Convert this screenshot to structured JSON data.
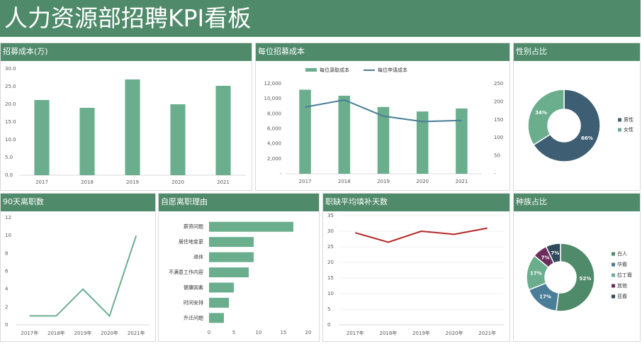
{
  "page": {
    "title": "人力资源部招聘KPI看板"
  },
  "colors": {
    "header": "#4f8a6a",
    "bar": "#6aae8e",
    "line_dark": "#4a7d97",
    "red_line": "#b52727",
    "grid": "#d9d9d9",
    "axis_text": "#595959"
  },
  "panels": {
    "cost": {
      "title": "招募成本(万)"
    },
    "per_cost": {
      "title": "每位招募成本"
    },
    "gender": {
      "title": "性别占比"
    },
    "turnover": {
      "title": "90天离职数"
    },
    "reasons": {
      "title": "自愿离职理由"
    },
    "fill_days": {
      "title": "职缺平均填补天数"
    },
    "race": {
      "title": "种族占比"
    }
  },
  "chart_data": [
    {
      "id": "cost",
      "type": "bar",
      "categories": [
        "2017",
        "2018",
        "2019",
        "2020",
        "2021"
      ],
      "values": [
        21.2,
        19.0,
        27.0,
        20.0,
        25.2
      ],
      "ylim": [
        0,
        30
      ],
      "yticks": [
        "0.0",
        "5.0",
        "10.0",
        "15.0",
        "20.0",
        "25.0",
        "30.0"
      ],
      "color": "#6aae8e"
    },
    {
      "id": "per_cost",
      "type": "bar",
      "categories": [
        "2017",
        "2018",
        "2019",
        "2020",
        "2021"
      ],
      "series": [
        {
          "name": "每位录取成本",
          "type": "bar",
          "axis": "left",
          "values": [
            11200,
            10400,
            8900,
            8300,
            8700
          ],
          "color": "#6aae8e"
        },
        {
          "name": "每位申请成本",
          "type": "line",
          "axis": "right",
          "values": [
            185,
            205,
            160,
            145,
            148
          ],
          "color": "#4a7d97"
        }
      ],
      "ylim": [
        0,
        12000
      ],
      "yticks": [
        "-",
        "2,000",
        "4,000",
        "6,000",
        "8,000",
        "10,000",
        "12,000"
      ],
      "y2lim": [
        0,
        250
      ],
      "y2ticks": [
        "-",
        "50",
        "100",
        "150",
        "200",
        "250"
      ],
      "legend": "top"
    },
    {
      "id": "gender",
      "type": "pie",
      "labels": [
        "男性",
        "女性"
      ],
      "values": [
        66,
        34
      ],
      "data_labels": [
        "66%",
        "34%"
      ],
      "colors": [
        "#3e5f73",
        "#6aae8e"
      ],
      "legend": "right"
    },
    {
      "id": "turnover",
      "type": "line",
      "categories": [
        "2017年",
        "2018年",
        "2019年",
        "2020年",
        "2021年"
      ],
      "values": [
        1,
        1,
        4,
        1,
        10
      ],
      "ylim": [
        0,
        12
      ],
      "yticks": [
        "0",
        "2",
        "4",
        "6",
        "8",
        "10",
        "12"
      ],
      "color": "#6aae8e"
    },
    {
      "id": "reasons",
      "type": "bar",
      "orientation": "horizontal",
      "categories": [
        "薪资问题",
        "居住地变更",
        "退休",
        "不满意工作内容",
        "健康因素",
        "时间安排",
        "升迁问题"
      ],
      "values": [
        17,
        9,
        9,
        8,
        5,
        4,
        3
      ],
      "xlim": [
        0,
        20
      ],
      "xticks": [
        "0",
        "5",
        "10",
        "15",
        "20"
      ],
      "color": "#6aae8e"
    },
    {
      "id": "fill_days",
      "type": "line",
      "categories": [
        "2017年",
        "2018年",
        "2019年",
        "2020年",
        "2021年"
      ],
      "values": [
        29.5,
        26.5,
        30,
        29,
        31
      ],
      "ylim": [
        0,
        35
      ],
      "yticks": [
        "0",
        "5",
        "10",
        "15",
        "20",
        "25",
        "30",
        "35"
      ],
      "color": "#b52727"
    },
    {
      "id": "race",
      "type": "pie",
      "labels": [
        "白人",
        "华裔",
        "拉丁裔",
        "其他",
        "亚裔"
      ],
      "values": [
        52,
        17,
        17,
        7,
        7
      ],
      "data_labels": [
        "52%",
        "17%",
        "17%",
        "7%",
        "7%"
      ],
      "colors": [
        "#4f8a6a",
        "#4a7d97",
        "#6aae8e",
        "#6b2d5b",
        "#2f4a5c"
      ],
      "legend": "right"
    }
  ]
}
